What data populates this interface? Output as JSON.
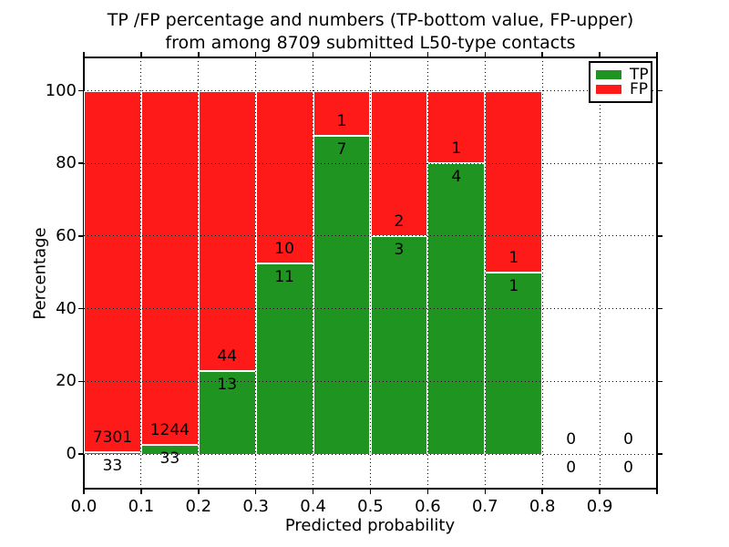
{
  "figure": {
    "title_line1": "TP /FP percentage and numbers (TP-bottom value, FP-upper)",
    "title_line2": "from among 8709 submitted L50-type contacts"
  },
  "chart_data": {
    "type": "bar",
    "stacked": true,
    "title": "TP /FP percentage and numbers (TP-bottom value, FP-upper)\nfrom among 8709 submitted L50-type contacts",
    "xlabel": "Predicted probability",
    "ylabel": "Percentage",
    "total_contacts": 8709,
    "grid": true,
    "xlim": [
      0.0,
      1.0
    ],
    "ylim": [
      -9.5,
      109.2
    ],
    "xticks": [
      {
        "value": 0.0,
        "label": "0.0"
      },
      {
        "value": 0.1,
        "label": "0.1"
      },
      {
        "value": 0.2,
        "label": "0.2"
      },
      {
        "value": 0.3,
        "label": "0.3"
      },
      {
        "value": 0.4,
        "label": "0.4"
      },
      {
        "value": 0.5,
        "label": "0.5"
      },
      {
        "value": 0.6,
        "label": "0.6"
      },
      {
        "value": 0.7,
        "label": "0.7"
      },
      {
        "value": 0.8,
        "label": "0.8"
      },
      {
        "value": 0.9,
        "label": "0.9"
      },
      {
        "value": 1.0,
        "label": ""
      }
    ],
    "yticks": [
      {
        "value": 0,
        "label": "0"
      },
      {
        "value": 20,
        "label": "20"
      },
      {
        "value": 40,
        "label": "40"
      },
      {
        "value": 60,
        "label": "60"
      },
      {
        "value": 80,
        "label": "80"
      },
      {
        "value": 100,
        "label": "100"
      }
    ],
    "legend": {
      "position": "upper right",
      "entries": [
        {
          "label": "TP",
          "color": "#209420"
        },
        {
          "label": "FP",
          "color": "#ff1a1a"
        }
      ]
    },
    "bins": [
      {
        "x_range": [
          0.0,
          0.1
        ],
        "tp": 33,
        "fp": 7301,
        "tp_pct": 0.45,
        "fp_pct": 99.55
      },
      {
        "x_range": [
          0.1,
          0.2
        ],
        "tp": 33,
        "fp": 1244,
        "tp_pct": 2.58,
        "fp_pct": 97.42
      },
      {
        "x_range": [
          0.2,
          0.3
        ],
        "tp": 13,
        "fp": 44,
        "tp_pct": 22.81,
        "fp_pct": 77.19
      },
      {
        "x_range": [
          0.3,
          0.4
        ],
        "tp": 11,
        "fp": 10,
        "tp_pct": 52.38,
        "fp_pct": 47.62
      },
      {
        "x_range": [
          0.4,
          0.5
        ],
        "tp": 7,
        "fp": 1,
        "tp_pct": 87.5,
        "fp_pct": 12.5
      },
      {
        "x_range": [
          0.5,
          0.6
        ],
        "tp": 3,
        "fp": 2,
        "tp_pct": 60.0,
        "fp_pct": 40.0
      },
      {
        "x_range": [
          0.6,
          0.7
        ],
        "tp": 4,
        "fp": 1,
        "tp_pct": 80.0,
        "fp_pct": 20.0
      },
      {
        "x_range": [
          0.7,
          0.8
        ],
        "tp": 1,
        "fp": 1,
        "tp_pct": 50.0,
        "fp_pct": 50.0
      },
      {
        "x_range": [
          0.8,
          0.9
        ],
        "tp": 0,
        "fp": 0,
        "tp_pct": 0.0,
        "fp_pct": 0.0
      },
      {
        "x_range": [
          0.9,
          1.0
        ],
        "tp": 0,
        "fp": 0,
        "tp_pct": 0.0,
        "fp_pct": 0.0
      }
    ]
  },
  "colors": {
    "tp": "#209420",
    "fp": "#ff1a1a",
    "bar_edge": "#ffffff",
    "grid": "#000000",
    "text": "#000000",
    "background": "#ffffff"
  }
}
